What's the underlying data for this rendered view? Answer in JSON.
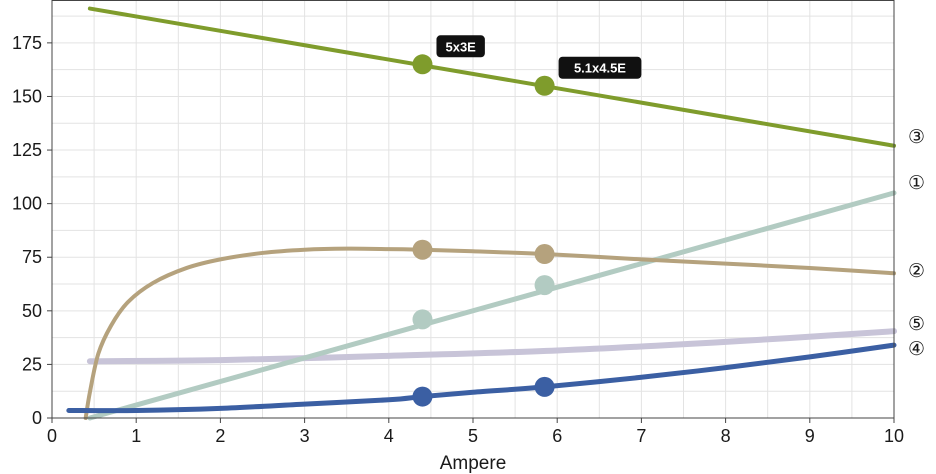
{
  "chart_data": {
    "type": "line",
    "xlabel": "Ampere",
    "ylabel": "",
    "title": "",
    "xlim": [
      0,
      10
    ],
    "ylim": [
      0,
      195
    ],
    "x_ticks": [
      0,
      1,
      2,
      3,
      4,
      5,
      6,
      7,
      8,
      9,
      10
    ],
    "y_ticks": [
      0,
      25,
      50,
      75,
      100,
      125,
      150,
      175
    ],
    "grid": true,
    "series": [
      {
        "name": "①",
        "color": "#b2cbc2",
        "x": [
          0.45,
          10
        ],
        "y": [
          0,
          105
        ],
        "markers": [
          {
            "x": 4.4,
            "y": 46
          },
          {
            "x": 5.85,
            "y": 62
          }
        ]
      },
      {
        "name": "②",
        "color": "#b5a27d",
        "x": [
          0.4,
          0.45,
          0.55,
          0.7,
          0.9,
          1.2,
          1.6,
          2.0,
          2.5,
          3.0,
          3.5,
          4.0,
          4.4,
          5.0,
          5.85,
          7.0,
          8.0,
          9.0,
          10.0
        ],
        "y": [
          0,
          12,
          30,
          43,
          54,
          63,
          70,
          74,
          77,
          78.5,
          79,
          78.8,
          78.5,
          77.8,
          76.5,
          74,
          72,
          70,
          67.5
        ],
        "markers": [
          {
            "x": 4.4,
            "y": 78.5
          },
          {
            "x": 5.85,
            "y": 76.5
          }
        ]
      },
      {
        "name": "③",
        "color": "#7f9c2c",
        "x": [
          0.45,
          10
        ],
        "y": [
          191,
          127
        ],
        "markers": [
          {
            "x": 4.4,
            "y": 165
          },
          {
            "x": 5.85,
            "y": 155
          }
        ]
      },
      {
        "name": "④",
        "color": "#3b5fa3",
        "x": [
          0.2,
          1.0,
          2.0,
          3.0,
          4.0,
          4.4,
          5.0,
          5.85,
          7.0,
          8.0,
          9.0,
          10.0
        ],
        "y": [
          3.5,
          3.5,
          4.5,
          6.5,
          8.5,
          10,
          12,
          14.5,
          19,
          23.5,
          28.5,
          34
        ],
        "markers": [
          {
            "x": 4.4,
            "y": 10
          },
          {
            "x": 5.85,
            "y": 14.5
          }
        ]
      },
      {
        "name": "⑤",
        "color": "#c8c4d8",
        "x": [
          0.45,
          2.0,
          4.0,
          6.0,
          8.0,
          10.0
        ],
        "y": [
          26.5,
          27,
          29,
          31.5,
          35.5,
          40.5
        ],
        "markers": []
      }
    ],
    "annotations": [
      {
        "text": "5x3E",
        "x": 4.4,
        "y": 165
      },
      {
        "text": "5.1x4.5E",
        "x": 5.85,
        "y": 155
      }
    ]
  }
}
